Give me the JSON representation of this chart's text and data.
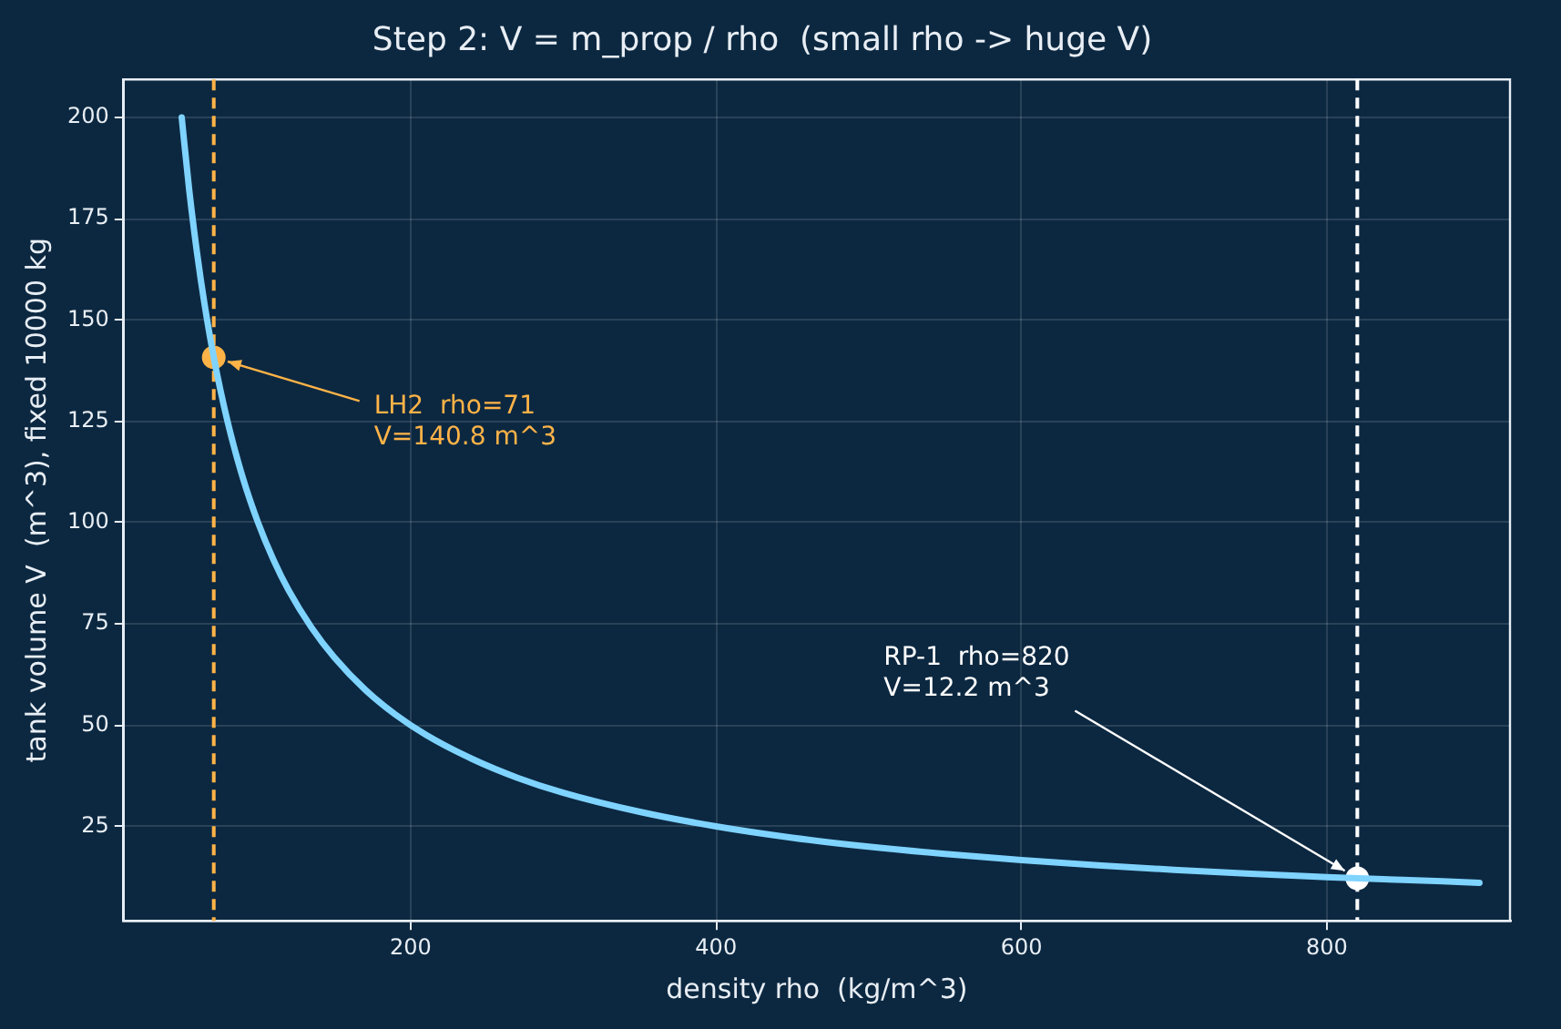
{
  "chart_data": {
    "type": "line",
    "title": "Step 2: V = m_prop / rho  (small rho -> huge V)",
    "xlabel": "density rho  (kg/m^3)",
    "ylabel": "tank volume V  (m^3), fixed 10000 kg",
    "xlim": [
      12,
      920
    ],
    "xticks": [
      200,
      400,
      600,
      800
    ],
    "ylim": [
      1.7,
      209.4
    ],
    "yticks": [
      25,
      50,
      75,
      100,
      125,
      150,
      175,
      200
    ],
    "grid": true,
    "legend": false,
    "series": [
      {
        "marker": "none",
        "color": "#7fd3ff",
        "x": [
          50,
          55,
          60,
          65,
          71,
          80,
          90,
          100,
          110,
          120,
          135,
          150,
          170,
          190,
          210,
          240,
          270,
          300,
          350,
          400,
          450,
          500,
          550,
          600,
          650,
          700,
          750,
          800,
          850,
          900
        ],
        "values": [
          200,
          181.8,
          166.7,
          153.8,
          140.8,
          125,
          111.1,
          100,
          90.9,
          83.3,
          74.1,
          66.7,
          58.8,
          52.6,
          47.6,
          41.7,
          37.0,
          33.3,
          28.6,
          25,
          22.2,
          20,
          18.2,
          16.7,
          15.4,
          14.3,
          13.3,
          12.5,
          11.8,
          11.1
        ]
      },
      {
        "type": "scatter",
        "marker": "circle",
        "color": "#ffb347",
        "x": [
          71
        ],
        "values": [
          140.8
        ]
      },
      {
        "type": "scatter",
        "marker": "circle",
        "color": "#ffffff",
        "x": [
          820
        ],
        "values": [
          12.2
        ]
      }
    ],
    "ref_lines": [
      {
        "axis": "x",
        "value": 71,
        "color": "#ffb347",
        "line_style": "dashed"
      },
      {
        "axis": "x",
        "value": 820,
        "color": "#ffffff",
        "line_style": "dashed"
      }
    ],
    "annotations": [
      {
        "text": "LH2  rho=71\nV=140.8 m^3",
        "x": 71,
        "y": 140.8
      },
      {
        "text": "RP-1  rho=820\nV=12.2 m^3",
        "x": 820,
        "y": 12.2
      }
    ]
  }
}
